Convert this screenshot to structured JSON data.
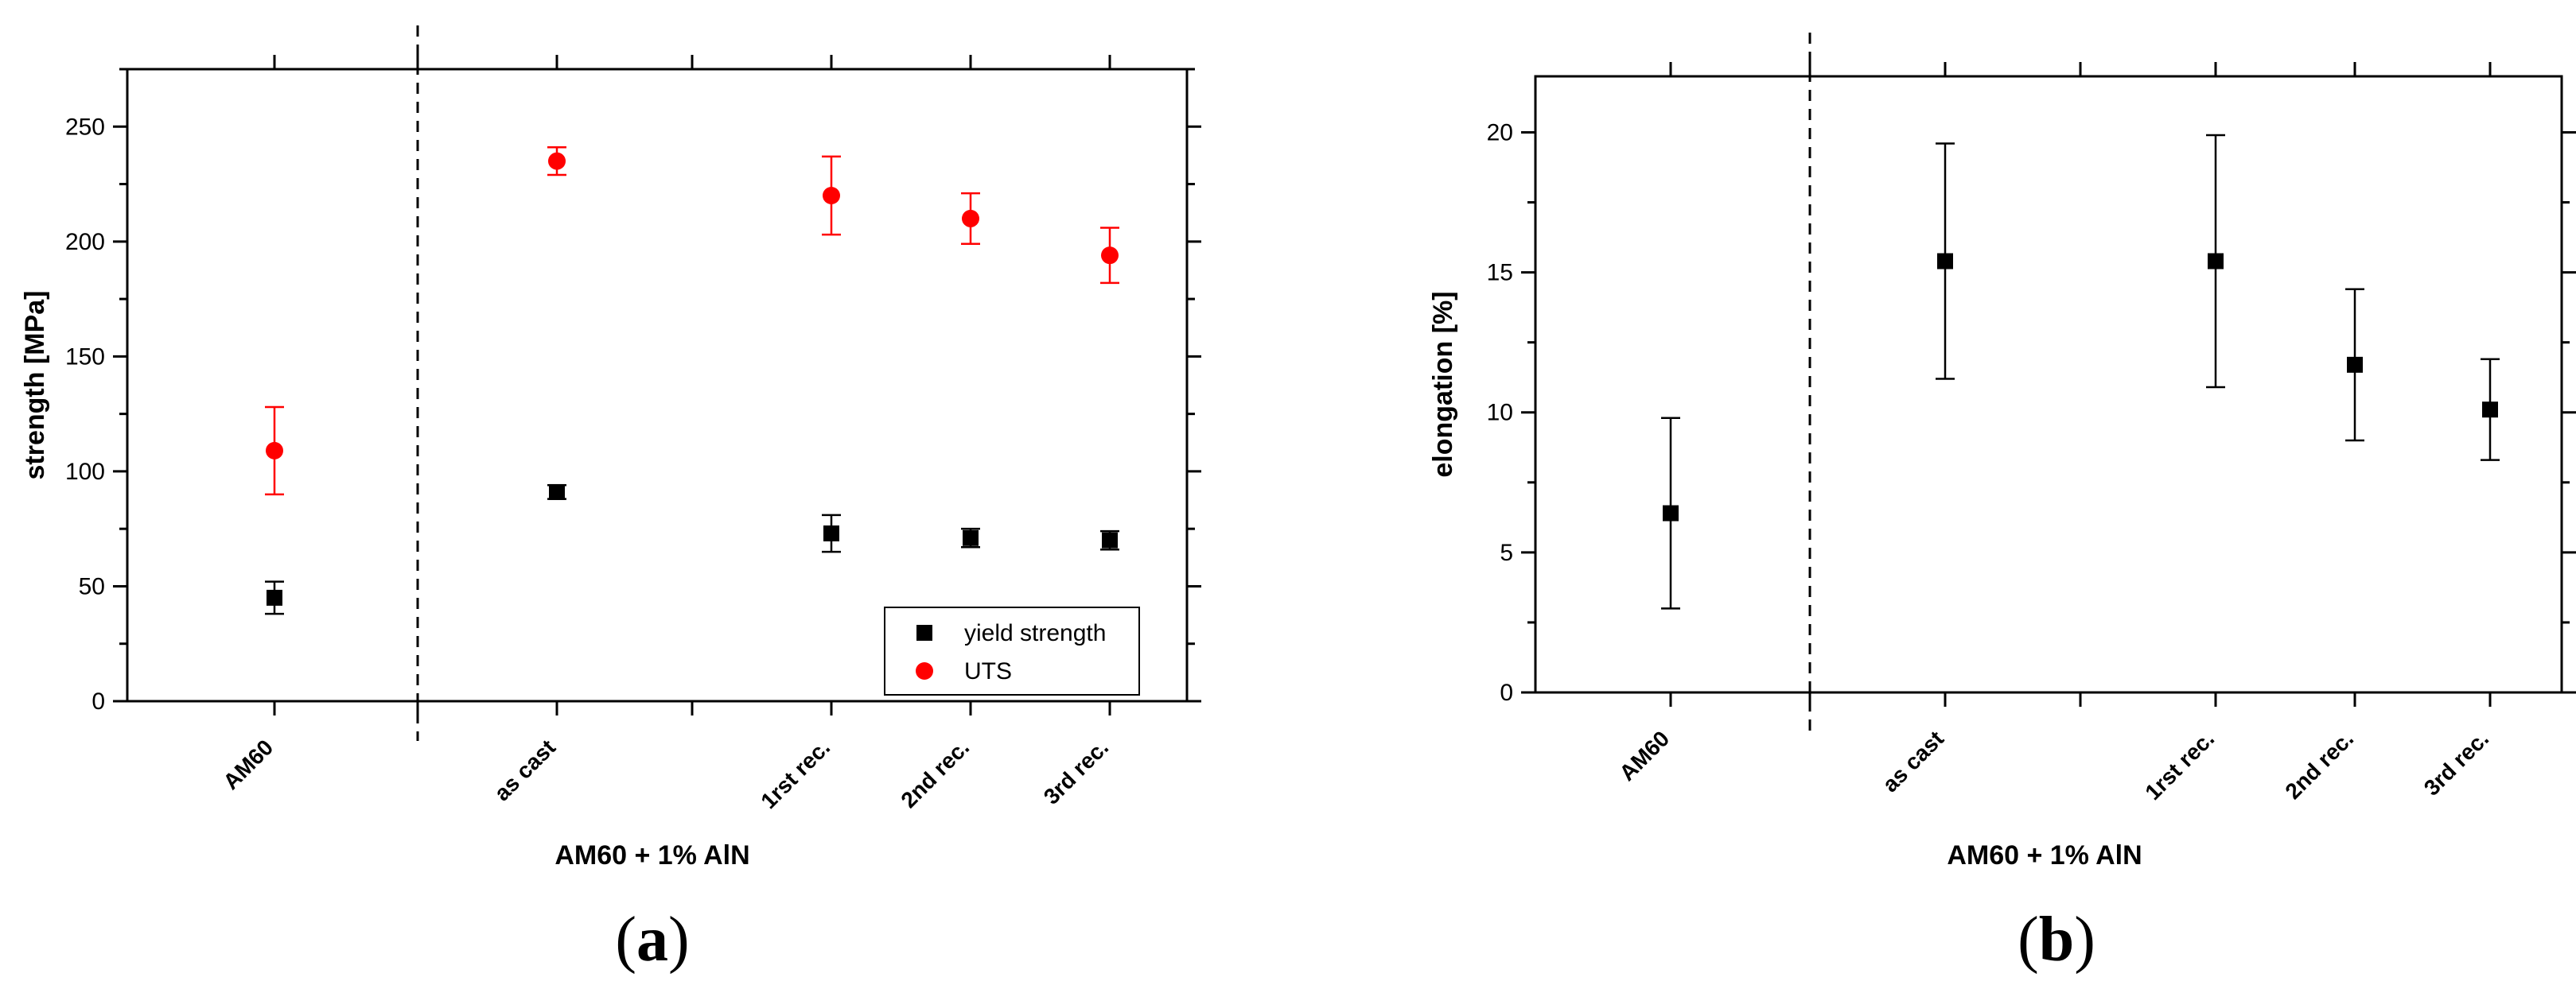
{
  "chart_data": [
    {
      "type": "scatter",
      "panel": "(a)",
      "xlabel": "AM60 + 1% AlN",
      "ylabel": "strength [MPa]",
      "categories": [
        "AM60",
        "as cast",
        "1rst rec.",
        "2nd rec.",
        "3rd rec."
      ],
      "x_ticks": [
        "AM60",
        "",
        "as cast",
        "",
        "1rst rec.",
        "2nd rec.",
        "3rd rec."
      ],
      "ylim": [
        0,
        275
      ],
      "yticks": [
        0,
        50,
        100,
        150,
        200,
        250
      ],
      "grid": false,
      "legend_position": "bottom-right",
      "separator": "dashed vertical line between AM60 and as cast",
      "series": [
        {
          "name": "yield strength",
          "marker": "square",
          "color": "#000000",
          "values": [
            45,
            91,
            73,
            71,
            70
          ],
          "errors": [
            7,
            3,
            8,
            4,
            4
          ]
        },
        {
          "name": "UTS",
          "marker": "circle",
          "color": "#ff0000",
          "values": [
            109,
            235,
            220,
            210,
            194
          ],
          "errors": [
            19,
            6,
            17,
            11,
            12
          ]
        }
      ]
    },
    {
      "type": "scatter",
      "panel": "(b)",
      "xlabel": "AM60 + 1% AlN",
      "ylabel": "elongation [%]",
      "categories": [
        "AM60",
        "as cast",
        "1rst rec.",
        "2nd rec.",
        "3rd rec."
      ],
      "x_ticks": [
        "AM60",
        "",
        "as cast",
        "",
        "1rst rec.",
        "2nd rec.",
        "3rd rec."
      ],
      "ylim": [
        0,
        22
      ],
      "yticks": [
        0,
        5,
        10,
        15,
        20
      ],
      "grid": false,
      "separator": "dashed vertical line between AM60 and as cast",
      "series": [
        {
          "marker": "square",
          "color": "#000000",
          "values": [
            6.4,
            15.4,
            15.4,
            11.7,
            10.1
          ],
          "errors": [
            3.4,
            4.2,
            4.5,
            2.7,
            1.8
          ]
        }
      ]
    }
  ]
}
